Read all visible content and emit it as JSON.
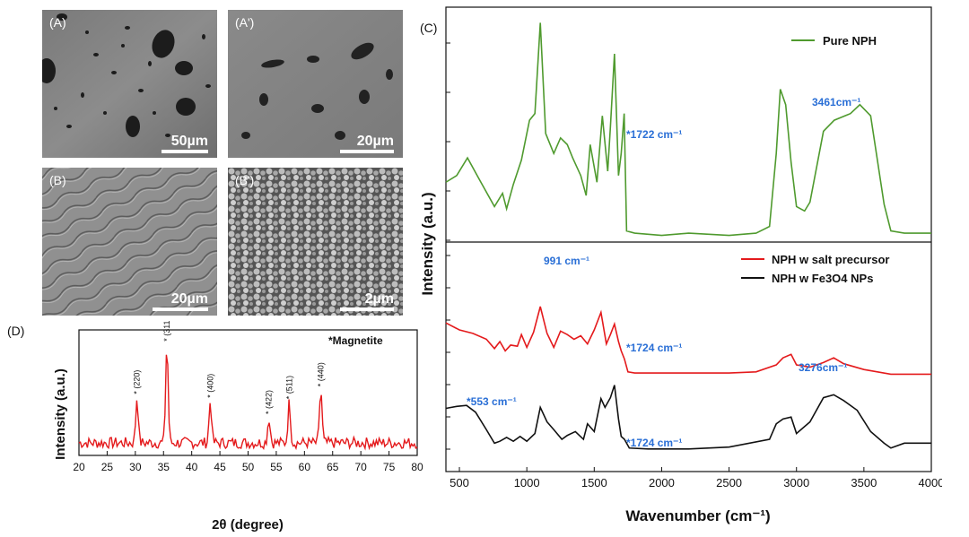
{
  "panels": {
    "a": {
      "label": "(A)",
      "scale": "50µm"
    },
    "a_prime": {
      "label": "(A')",
      "scale": "20µm"
    },
    "b": {
      "label": "(B)",
      "scale": "20µm"
    },
    "b_prime": {
      "label": "(B')",
      "scale": "2µm"
    },
    "c": {
      "label": "(C)"
    },
    "d": {
      "label": "(D)"
    }
  },
  "chart_data": [
    {
      "type": "line",
      "panel": "(D)",
      "xlabel": "2θ (degree)",
      "ylabel": "Intensity (a.u.)",
      "xlim": [
        20,
        80
      ],
      "x_ticks": [
        20,
        25,
        30,
        35,
        40,
        45,
        50,
        55,
        60,
        65,
        70,
        75,
        80
      ],
      "legend_text": "*Magnetite",
      "color": "#e41a1c",
      "peaks": [
        {
          "x": 30.3,
          "y": 0.46,
          "label": "* (220)"
        },
        {
          "x": 35.6,
          "y": 0.88,
          "label": "* (311)"
        },
        {
          "x": 43.3,
          "y": 0.43,
          "label": "* (400)"
        },
        {
          "x": 53.7,
          "y": 0.3,
          "label": "* (422)"
        },
        {
          "x": 57.3,
          "y": 0.42,
          "label": "* (511)"
        },
        {
          "x": 62.9,
          "y": 0.52,
          "label": "* (440)"
        }
      ]
    },
    {
      "type": "line",
      "panel": "(C)",
      "xlabel": "Wavenumber (cm⁻¹)",
      "ylabel": "Intensity (a.u.)",
      "xlim": [
        400,
        4000
      ],
      "x_ticks": [
        500,
        1000,
        1500,
        2000,
        2500,
        3000,
        3500,
        4000
      ],
      "series": [
        {
          "name": "Pure NPH",
          "color": "#4f9a2e",
          "points": [
            [
              400,
              0.25
            ],
            [
              480,
              0.28
            ],
            [
              560,
              0.36
            ],
            [
              650,
              0.26
            ],
            [
              760,
              0.14
            ],
            [
              820,
              0.2
            ],
            [
              850,
              0.13
            ],
            [
              900,
              0.24
            ],
            [
              960,
              0.35
            ],
            [
              1020,
              0.53
            ],
            [
              1060,
              0.56
            ],
            [
              1100,
              0.97
            ],
            [
              1140,
              0.47
            ],
            [
              1200,
              0.38
            ],
            [
              1250,
              0.45
            ],
            [
              1300,
              0.42
            ],
            [
              1340,
              0.36
            ],
            [
              1400,
              0.28
            ],
            [
              1440,
              0.19
            ],
            [
              1470,
              0.42
            ],
            [
              1520,
              0.25
            ],
            [
              1560,
              0.55
            ],
            [
              1600,
              0.3
            ],
            [
              1620,
              0.5
            ],
            [
              1650,
              0.83
            ],
            [
              1680,
              0.28
            ],
            [
              1700,
              0.38
            ],
            [
              1722,
              0.56
            ],
            [
              1740,
              0.03
            ],
            [
              1800,
              0.02
            ],
            [
              2000,
              0.01
            ],
            [
              2200,
              0.02
            ],
            [
              2500,
              0.01
            ],
            [
              2700,
              0.02
            ],
            [
              2800,
              0.05
            ],
            [
              2850,
              0.38
            ],
            [
              2880,
              0.67
            ],
            [
              2920,
              0.6
            ],
            [
              2960,
              0.34
            ],
            [
              3000,
              0.14
            ],
            [
              3060,
              0.12
            ],
            [
              3100,
              0.16
            ],
            [
              3200,
              0.48
            ],
            [
              3280,
              0.53
            ],
            [
              3400,
              0.56
            ],
            [
              3470,
              0.6
            ],
            [
              3550,
              0.55
            ],
            [
              3650,
              0.15
            ],
            [
              3700,
              0.03
            ],
            [
              3800,
              0.02
            ],
            [
              4000,
              0.02
            ]
          ]
        },
        {
          "name": "NPH w salt precursor",
          "color": "#e41a1c",
          "points": [
            [
              400,
              0.46
            ],
            [
              500,
              0.4
            ],
            [
              600,
              0.37
            ],
            [
              700,
              0.32
            ],
            [
              760,
              0.24
            ],
            [
              800,
              0.3
            ],
            [
              840,
              0.22
            ],
            [
              880,
              0.27
            ],
            [
              930,
              0.26
            ],
            [
              960,
              0.36
            ],
            [
              1000,
              0.25
            ],
            [
              1050,
              0.38
            ],
            [
              1100,
              0.6
            ],
            [
              1150,
              0.37
            ],
            [
              1200,
              0.25
            ],
            [
              1250,
              0.39
            ],
            [
              1300,
              0.36
            ],
            [
              1350,
              0.32
            ],
            [
              1400,
              0.35
            ],
            [
              1450,
              0.28
            ],
            [
              1500,
              0.4
            ],
            [
              1550,
              0.55
            ],
            [
              1590,
              0.28
            ],
            [
              1620,
              0.36
            ],
            [
              1650,
              0.45
            ],
            [
              1680,
              0.3
            ],
            [
              1700,
              0.22
            ],
            [
              1724,
              0.15
            ],
            [
              1750,
              0.04
            ],
            [
              1800,
              0.03
            ],
            [
              2000,
              0.03
            ],
            [
              2500,
              0.03
            ],
            [
              2700,
              0.04
            ],
            [
              2850,
              0.1
            ],
            [
              2900,
              0.16
            ],
            [
              2960,
              0.19
            ],
            [
              3000,
              0.1
            ],
            [
              3100,
              0.08
            ],
            [
              3200,
              0.12
            ],
            [
              3276,
              0.16
            ],
            [
              3350,
              0.11
            ],
            [
              3500,
              0.06
            ],
            [
              3700,
              0.02
            ],
            [
              4000,
              0.02
            ]
          ]
        },
        {
          "name": "NPH w Fe3O4 NPs",
          "color": "#111111",
          "points": [
            [
              400,
              0.44
            ],
            [
              480,
              0.46
            ],
            [
              553,
              0.47
            ],
            [
              620,
              0.4
            ],
            [
              700,
              0.22
            ],
            [
              760,
              0.08
            ],
            [
              800,
              0.1
            ],
            [
              850,
              0.14
            ],
            [
              900,
              0.1
            ],
            [
              950,
              0.15
            ],
            [
              1000,
              0.1
            ],
            [
              1060,
              0.18
            ],
            [
              1100,
              0.45
            ],
            [
              1150,
              0.3
            ],
            [
              1200,
              0.22
            ],
            [
              1260,
              0.12
            ],
            [
              1300,
              0.16
            ],
            [
              1360,
              0.2
            ],
            [
              1420,
              0.12
            ],
            [
              1450,
              0.28
            ],
            [
              1500,
              0.2
            ],
            [
              1550,
              0.54
            ],
            [
              1580,
              0.45
            ],
            [
              1620,
              0.55
            ],
            [
              1650,
              0.68
            ],
            [
              1680,
              0.33
            ],
            [
              1700,
              0.15
            ],
            [
              1724,
              0.12
            ],
            [
              1760,
              0.03
            ],
            [
              1900,
              0.02
            ],
            [
              2200,
              0.02
            ],
            [
              2500,
              0.04
            ],
            [
              2800,
              0.12
            ],
            [
              2850,
              0.28
            ],
            [
              2900,
              0.33
            ],
            [
              2960,
              0.35
            ],
            [
              3000,
              0.18
            ],
            [
              3100,
              0.3
            ],
            [
              3200,
              0.55
            ],
            [
              3276,
              0.58
            ],
            [
              3350,
              0.52
            ],
            [
              3450,
              0.42
            ],
            [
              3550,
              0.2
            ],
            [
              3650,
              0.08
            ],
            [
              3700,
              0.03
            ],
            [
              3800,
              0.08
            ],
            [
              4000,
              0.08
            ]
          ]
        }
      ],
      "annotations": [
        {
          "text": "*1722 cm⁻¹",
          "series": "Pure NPH"
        },
        {
          "text": "3461cm⁻¹",
          "series": "Pure NPH"
        },
        {
          "text": "991 cm⁻¹",
          "series": "NPH w salt precursor"
        },
        {
          "text": "*1724 cm⁻¹",
          "series": "NPH w salt precursor"
        },
        {
          "text": "*553 cm⁻¹",
          "series": "NPH w Fe3O4 NPs"
        },
        {
          "text": "*1724 cm⁻¹",
          "series": "NPH w Fe3O4 NPs"
        },
        {
          "text": "3276cm⁻¹",
          "series": "NPH w Fe3O4 NPs"
        }
      ],
      "legend": [
        "Pure NPH",
        "NPH w salt precursor",
        "NPH w Fe3O4 NPs"
      ],
      "annotation_color": "#2a6fd6"
    }
  ]
}
